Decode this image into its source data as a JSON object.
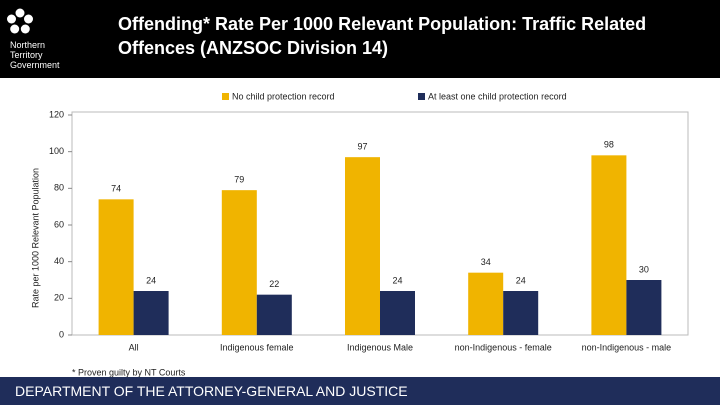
{
  "header": {
    "title": "Offending* Rate Per 1000 Relevant Population: Traffic Related Offences (ANZSOC Division 14)",
    "logo_text": [
      "Northern",
      "Territory",
      "Government"
    ]
  },
  "chart_data": {
    "type": "bar",
    "y_label": "Rate per 1000 Relevant Population",
    "categories": [
      "All",
      "Indigenous female",
      "Indigenous Male",
      "non-Indigenous - female",
      "non-Indigenous - male"
    ],
    "series": [
      {
        "name": "No child protection record",
        "color": "#f0b400",
        "values": [
          74,
          79,
          97,
          34,
          98
        ]
      },
      {
        "name": "At least one child protection record",
        "color": "#1f2d5a",
        "values": [
          24,
          22,
          24,
          24,
          30
        ]
      }
    ],
    "ylim": [
      0,
      120
    ],
    "yticks": [
      0,
      20,
      40,
      60,
      80,
      100,
      120
    ],
    "grid": false,
    "legend": "top"
  },
  "footnote": "* Proven guilty by NT Courts",
  "footer": "DEPARTMENT OF THE ATTORNEY-GENERAL AND JUSTICE"
}
